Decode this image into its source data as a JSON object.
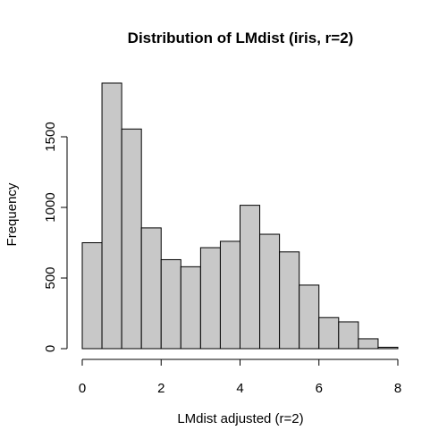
{
  "chart_data": {
    "type": "bar",
    "title": "Distribution of LMdist (iris, r=2)",
    "xlabel": "LMdist adjusted (r=2)",
    "ylabel": "Frequency",
    "bin_edges": [
      0,
      0.5,
      1,
      1.5,
      2,
      2.5,
      3,
      3.5,
      4,
      4.5,
      5,
      5.5,
      6,
      6.5,
      7,
      7.5,
      8
    ],
    "values": [
      750,
      1880,
      1555,
      855,
      630,
      580,
      715,
      760,
      1015,
      810,
      685,
      450,
      220,
      190,
      70,
      10
    ],
    "xlim": [
      0,
      8
    ],
    "ylim": [
      0,
      1880
    ],
    "x_ticks": [
      0,
      2,
      4,
      6,
      8
    ],
    "y_ticks": [
      0,
      500,
      1000,
      1500
    ],
    "bar_color": "#c8c8c8",
    "border_color": "#000000",
    "grid": false
  }
}
